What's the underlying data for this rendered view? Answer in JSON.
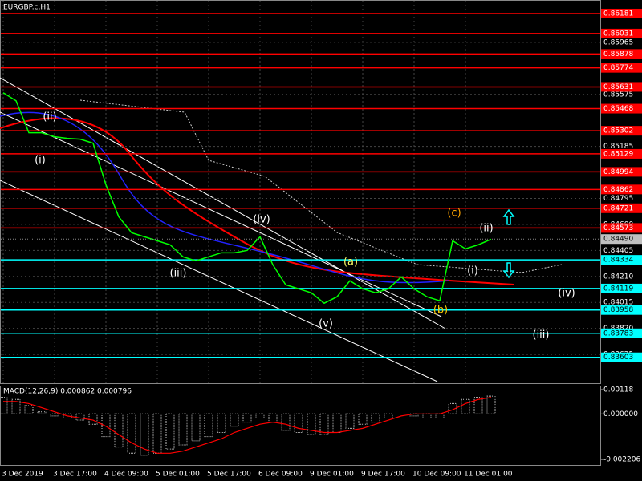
{
  "chart_data": [
    {
      "type": "line",
      "title": "EURGBP.c,H1",
      "color": "#00ff00",
      "categories": [
        "3 Dec 2019",
        null,
        null,
        null,
        "3 Dec 17:00",
        null,
        null,
        null,
        "4 Dec 09:00",
        null,
        null,
        null,
        "5 Dec 01:00",
        null,
        null,
        null,
        "5 Dec 17:00",
        null,
        null,
        null,
        "6 Dec 09:00",
        null,
        null,
        null,
        "9 Dec 01:00",
        null,
        null,
        null,
        "9 Dec 17:00",
        null,
        null,
        null,
        "10 Dec 09:00",
        null,
        null,
        null,
        "11 Dec 01:00",
        null,
        null
      ],
      "values": [
        0.85587,
        0.85527,
        0.85287,
        0.85287,
        0.85257,
        0.85245,
        0.85239,
        0.85209,
        0.84897,
        0.84657,
        0.84537,
        0.84507,
        0.84477,
        0.84447,
        0.84357,
        0.84327,
        0.84357,
        0.84387,
        0.84387,
        0.84405,
        0.84507,
        0.84297,
        0.84147,
        0.84117,
        0.84087,
        0.84009,
        0.84057,
        0.84177,
        0.84117,
        0.84087,
        0.84117,
        0.84207,
        0.84117,
        0.84057,
        0.84027,
        0.84477,
        0.84417,
        0.84447,
        0.84489
      ],
      "ylim": [
        0.83409,
        0.86277
      ],
      "yticks": [
        0.85965,
        0.85575,
        0.85185,
        0.84795,
        {
          "value": 0.846,
          "label": "0.84600"
        },
        0.84405,
        {
          "value": 0.8421,
          "label": "0.84210"
        },
        0.84015,
        {
          "value": 0.8382,
          "label": "0.83820"
        },
        0.83625
      ],
      "grid": true,
      "levels": [
        {
          "value": 0.86181,
          "color": "#ff0000"
        },
        {
          "value": 0.86031,
          "color": "#ff0000"
        },
        {
          "value": 0.85878,
          "color": "#ff0000"
        },
        {
          "value": 0.85774,
          "color": "#ff0000"
        },
        {
          "value": 0.85631,
          "color": "#ff0000"
        },
        {
          "value": 0.85468,
          "color": "#ff0000"
        },
        {
          "value": 0.85302,
          "color": "#ff0000"
        },
        {
          "value": 0.85129,
          "color": "#ff0000"
        },
        {
          "value": 0.84994,
          "color": "#ff0000"
        },
        {
          "value": 0.84862,
          "color": "#ff0000"
        },
        {
          "value": 0.84721,
          "color": "#ff0000"
        },
        {
          "value": 0.84573,
          "color": "#ff0000"
        },
        {
          "value": 0.84334,
          "color": "#00ffff"
        },
        {
          "value": 0.84119,
          "color": "#00ffff"
        },
        {
          "value": 0.83958,
          "color": "#00ffff"
        },
        {
          "value": 0.83783,
          "color": "#00ffff"
        },
        {
          "value": 0.83603,
          "color": "#00ffff"
        }
      ],
      "current_price": {
        "value": 0.8449,
        "label": "0.84490"
      },
      "annotations": [
        {
          "text": "(i)",
          "color": "#ffffff"
        },
        {
          "text": "(ii)",
          "color": "#ffffff"
        },
        {
          "text": "(iii)",
          "color": "#ffffff"
        },
        {
          "text": "(iv)",
          "color": "#ffffff"
        },
        {
          "text": "(v)",
          "color": "#ffffff"
        },
        {
          "text": "(a)",
          "color": "#ffff66"
        },
        {
          "text": "(b)",
          "color": "#ffcc00"
        },
        {
          "text": "(c)",
          "color": "#ffa500"
        },
        {
          "text": "(ii)",
          "color": "#ffffff"
        },
        {
          "text": "(i)",
          "color": "#ffffff"
        },
        {
          "text": "(iv)",
          "color": "#ffffff"
        },
        {
          "text": "(iii)",
          "color": "#ffffff"
        }
      ]
    },
    {
      "type": "bar",
      "title": "MACD(12,26,9) 0.000862 0.000796",
      "ylim": [
        -0.00247,
        0.00133
      ],
      "yticks": [
        0.00118,
        {
          "value": 0,
          "label": "0.000000"
        },
        -0.002206
      ],
      "series": [
        {
          "color": "#c0c0c0",
          "values": [
            0.0008,
            0.0007,
            0.0004,
            0.0001,
            -0.0001,
            -0.0002,
            -0.0003,
            -0.0005,
            -0.0011,
            -0.0016,
            -0.0019,
            -0.002,
            -0.0019,
            -0.0017,
            -0.0015,
            -0.0013,
            -0.0011,
            -0.0009,
            -0.0006,
            -0.0004,
            -0.0002,
            -0.0004,
            -0.0008,
            -0.0009,
            -0.001,
            -0.001,
            -0.0009,
            -0.0007,
            -0.0005,
            -0.0004,
            -0.0002,
            0,
            -0.0001,
            -0.0002,
            -0.0002,
            0.0005,
            0.0007,
            0.0008,
            0.00086
          ]
        },
        {
          "color": "#ff0000",
          "values": [
            0.0006,
            0.0006,
            0.0005,
            0.0003,
            0.0001,
            -0.0001,
            -0.0002,
            -0.0003,
            -0.0006,
            -0.001,
            -0.0014,
            -0.0017,
            -0.0019,
            -0.0019,
            -0.0018,
            -0.0016,
            -0.0014,
            -0.0012,
            -0.0009,
            -0.0007,
            -0.0005,
            -0.0004,
            -0.0005,
            -0.0007,
            -0.0008,
            -0.0009,
            -0.0009,
            -0.0008,
            -0.0007,
            -0.0005,
            -0.0003,
            -0.0001,
            0,
            0,
            0,
            0.0002,
            0.0005,
            0.0007,
            0.0008
          ]
        }
      ]
    }
  ]
}
